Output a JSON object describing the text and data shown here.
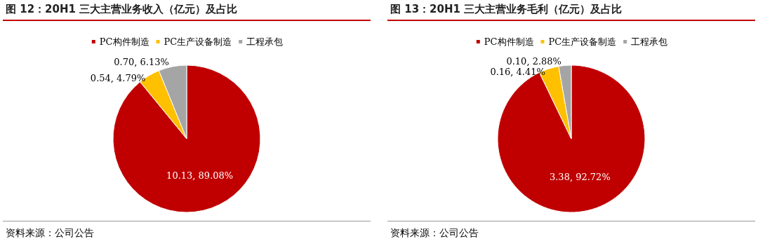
{
  "chart_data": [
    {
      "type": "pie",
      "title": "图 12：20H1 三大主营业务收入（亿元）及占比",
      "categories": [
        "PC构件制造",
        "PC生产设备制造",
        "工程承包"
      ],
      "values": [
        10.13,
        0.54,
        0.7
      ],
      "colors": [
        "#c00000",
        "#ffc000",
        "#a5a5a5"
      ],
      "value_labels": [
        "10.13, 89.08%",
        "0.54, 4.79%",
        "0.70, 6.13%"
      ],
      "legend": "top",
      "annotations": [
        "资料来源：公司公告"
      ]
    },
    {
      "type": "pie",
      "title": "图 13：20H1 三大主营业务毛利（亿元）及占比",
      "categories": [
        "PC构件制造",
        "PC生产设备制造",
        "工程承包"
      ],
      "values": [
        3.38,
        0.16,
        0.1
      ],
      "colors": [
        "#c00000",
        "#ffc000",
        "#a5a5a5"
      ],
      "value_labels": [
        "3.38, 92.72%",
        "0.16, 4.41%",
        "0.10, 2.88%"
      ],
      "legend": "top",
      "annotations": [
        "资料来源：公司公告"
      ]
    }
  ]
}
